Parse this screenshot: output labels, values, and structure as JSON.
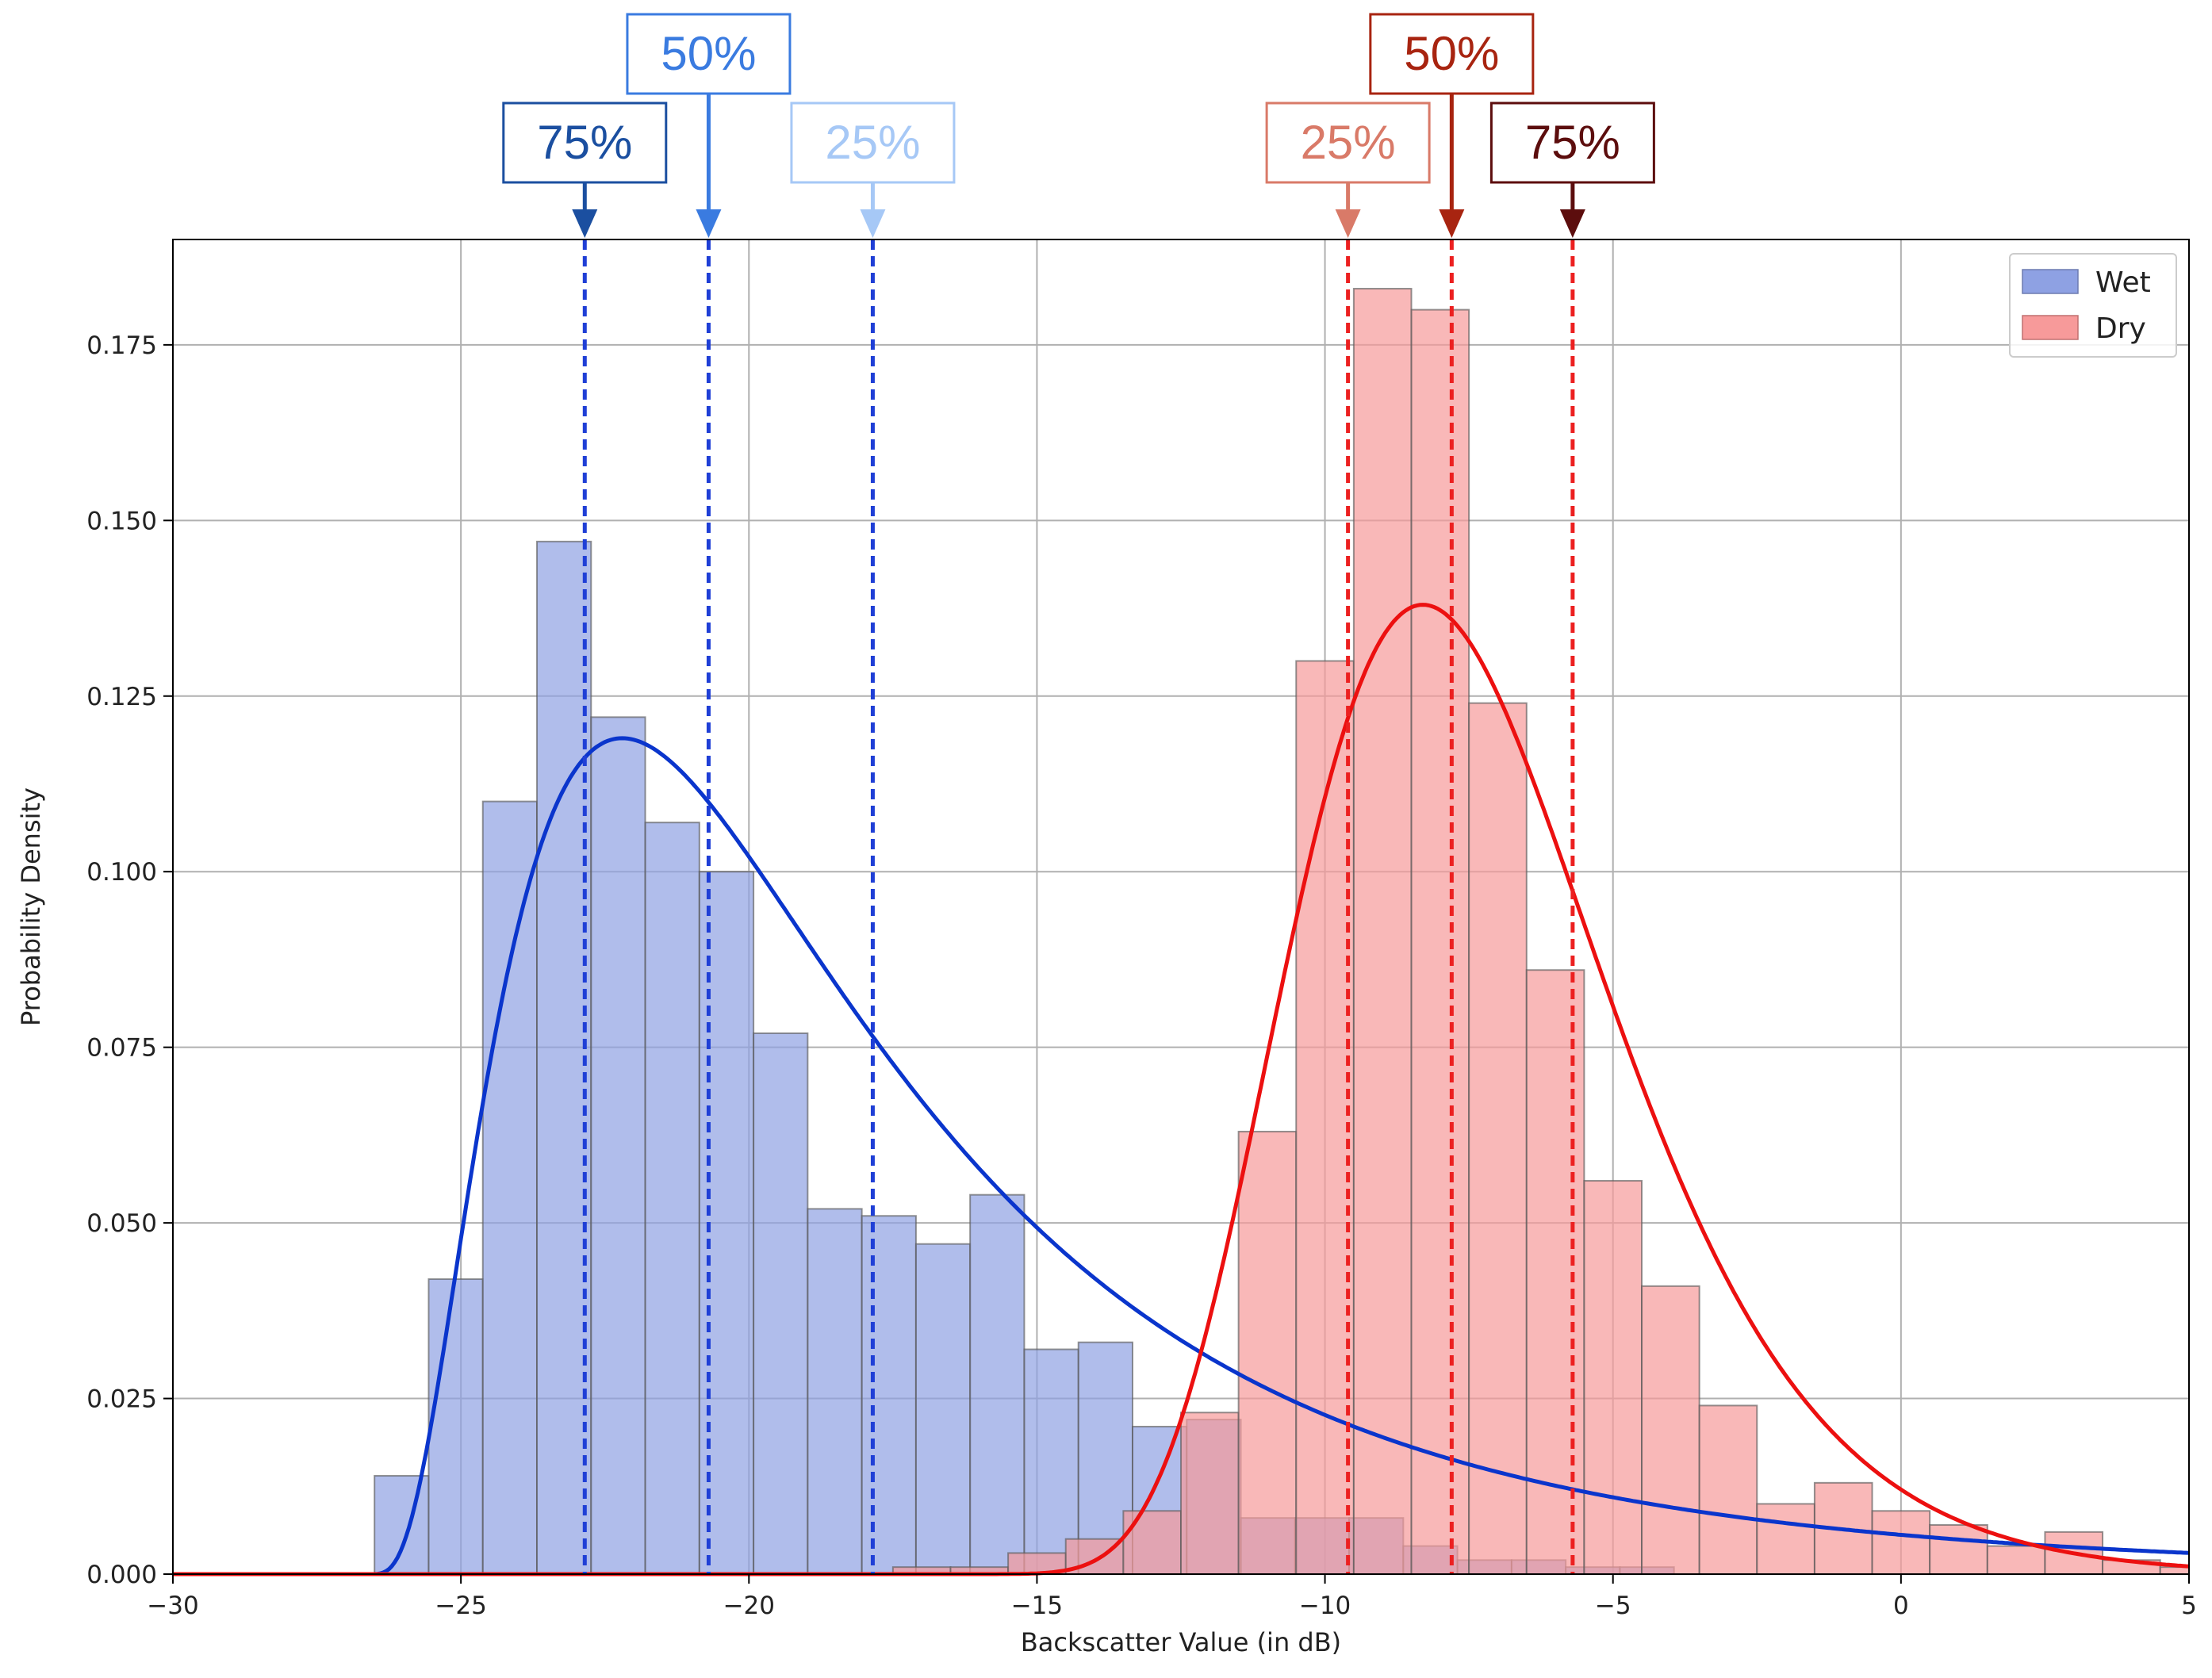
{
  "chart_data": {
    "type": "histogram",
    "xlabel": "Backscatter Value (in dB)",
    "ylabel": "Probability Density",
    "xlim": [
      -30,
      5
    ],
    "ylim": [
      0,
      0.19
    ],
    "xticks": [
      -30,
      -25,
      -20,
      -15,
      -10,
      -5,
      0,
      5
    ],
    "xtick_labels": [
      "−30",
      "−25",
      "−20",
      "−15",
      "−10",
      "−5",
      "0",
      "5"
    ],
    "yticks": [
      0,
      0.025,
      0.05,
      0.075,
      0.1,
      0.125,
      0.15,
      0.175
    ],
    "ytick_labels": [
      "0.000",
      "0.025",
      "0.050",
      "0.075",
      "0.100",
      "0.125",
      "0.150",
      "0.175"
    ],
    "grid": true,
    "legend_position": "top-right",
    "series": [
      {
        "name": "Wet",
        "color": "#8ea1e3",
        "line_color": "#0a35cc",
        "bin_edges": [
          -26.5,
          -25.56,
          -24.62,
          -23.68,
          -22.74,
          -21.8,
          -20.86,
          -19.92,
          -18.98,
          -18.04,
          -17.1,
          -16.16,
          -15.22,
          -14.28,
          -13.34,
          -12.4,
          -11.46,
          -10.52,
          -9.58,
          -8.64,
          -7.7,
          -6.76,
          -5.82,
          -4.88,
          -3.94
        ],
        "densities": [
          0.014,
          0.042,
          0.11,
          0.147,
          0.122,
          0.107,
          0.1,
          0.077,
          0.052,
          0.051,
          0.047,
          0.054,
          0.032,
          0.033,
          0.021,
          0.022,
          0.008,
          0.008,
          0.008,
          0.004,
          0.002,
          0.002,
          0.001,
          0.001
        ],
        "curve_peak": {
          "x": -22.2,
          "y": 0.119
        },
        "quantile_lines": [
          {
            "label": "75%",
            "x": -22.85,
            "color": "#1b4fa0"
          },
          {
            "label": "50%",
            "x": -20.7,
            "color": "#3a7be0"
          },
          {
            "label": "25%",
            "x": -17.85,
            "color": "#a6c8f6"
          }
        ]
      },
      {
        "name": "Dry",
        "color": "#f79a9a",
        "line_color": "#ec1010",
        "bin_edges": [
          -17.5,
          -16.5,
          -15.5,
          -14.5,
          -13.5,
          -12.5,
          -11.5,
          -10.5,
          -9.5,
          -8.5,
          -7.5,
          -6.5,
          -5.5,
          -4.5,
          -3.5,
          -2.5,
          -1.5,
          -0.5,
          0.5,
          1.5,
          2.5,
          3.5,
          4.5,
          5.5
        ],
        "densities": [
          0.001,
          0.001,
          0.003,
          0.005,
          0.009,
          0.023,
          0.063,
          0.13,
          0.183,
          0.18,
          0.124,
          0.086,
          0.056,
          0.041,
          0.024,
          0.01,
          0.013,
          0.009,
          0.007,
          0.004,
          0.006,
          0.002,
          0.001
        ],
        "curve_peak": {
          "x": -8.3,
          "y": 0.138
        },
        "quantile_lines": [
          {
            "label": "25%",
            "x": -9.6,
            "color": "#d97a68"
          },
          {
            "label": "50%",
            "x": -7.8,
            "color": "#a82410"
          },
          {
            "label": "75%",
            "x": -5.7,
            "color": "#5c0d0d"
          }
        ]
      }
    ],
    "quantile_line_color": "#1f3fd6",
    "quantile_line_color_dry": "#ec2020"
  }
}
